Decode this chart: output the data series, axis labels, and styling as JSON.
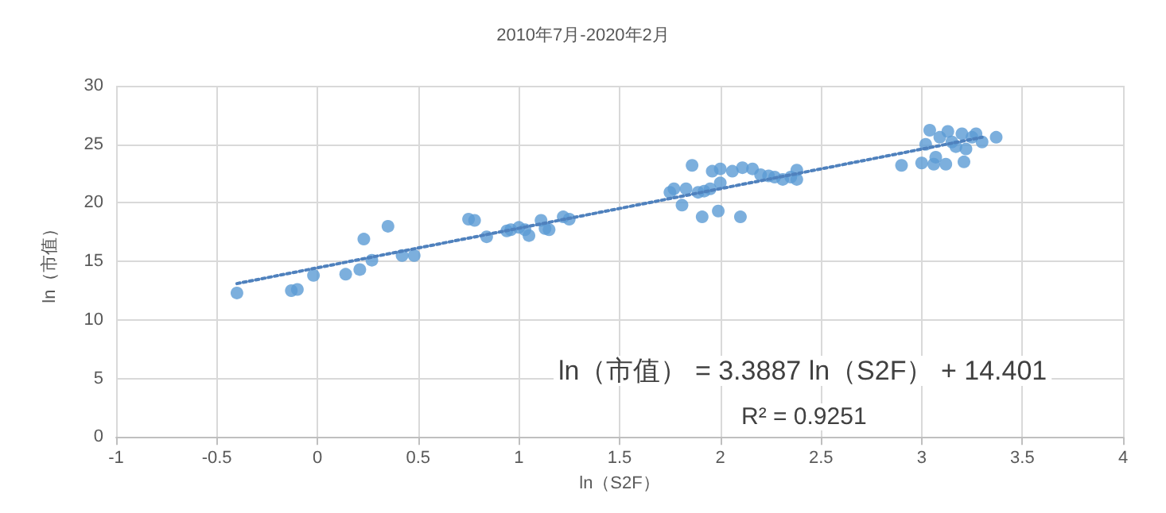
{
  "chart_data": {
    "type": "scatter",
    "subtitle": "2010年7月-2020年2月",
    "xlabel": "ln（S2F）",
    "ylabel": "ln（市值）",
    "annotations": [
      "ln（市值） = 3.3887 ln（S2F） + 14.401",
      "R² = 0.9251"
    ],
    "xlim": [
      -1,
      4
    ],
    "xticks": [
      -1,
      -0.5,
      0,
      0.5,
      1,
      1.5,
      2,
      2.5,
      3,
      3.5,
      4
    ],
    "ylim": [
      0,
      30
    ],
    "yticks": [
      0,
      5,
      10,
      15,
      20,
      25,
      30
    ],
    "grid": true,
    "marker": "circle",
    "series": [
      {
        "color": "#5b9bd5",
        "x": [
          -0.4,
          -0.13,
          -0.1,
          -0.02,
          0.14,
          0.21,
          0.23,
          0.27,
          0.35,
          0.42,
          0.48,
          0.75,
          0.78,
          0.84,
          0.94,
          0.96,
          1.0,
          1.03,
          1.05,
          1.11,
          1.13,
          1.15,
          1.22,
          1.25,
          1.75,
          1.77,
          1.81,
          1.83,
          1.86,
          1.89,
          1.91,
          1.92,
          1.95,
          1.96,
          1.99,
          2.0,
          2.0,
          2.06,
          2.1,
          2.11,
          2.16,
          2.2,
          2.24,
          2.27,
          2.31,
          2.35,
          2.38,
          2.38,
          2.9,
          3.0,
          3.02,
          3.04,
          3.06,
          3.07,
          3.09,
          3.12,
          3.13,
          3.15,
          3.17,
          3.2,
          3.21,
          3.22,
          3.25,
          3.27,
          3.3,
          3.37
        ],
        "values": [
          12.3,
          12.5,
          12.6,
          13.8,
          13.9,
          14.3,
          16.9,
          15.1,
          18.0,
          15.5,
          15.5,
          18.6,
          18.5,
          17.1,
          17.6,
          17.7,
          17.9,
          17.7,
          17.2,
          18.5,
          17.8,
          17.7,
          18.8,
          18.6,
          20.9,
          21.2,
          19.8,
          21.2,
          23.2,
          20.9,
          18.8,
          21.0,
          21.2,
          22.7,
          19.3,
          22.9,
          21.7,
          22.7,
          18.8,
          23.0,
          22.9,
          22.4,
          22.3,
          22.2,
          22.0,
          22.2,
          22.8,
          22.0,
          23.2,
          23.4,
          25.0,
          26.2,
          23.3,
          23.9,
          25.6,
          23.3,
          26.1,
          25.2,
          24.8,
          25.9,
          23.5,
          24.6,
          25.6,
          25.9,
          25.2,
          25.6
        ]
      },
      {
        "type": "line",
        "color": "#4f81bd",
        "line_style": "dotted",
        "marker": "none",
        "x": [
          -0.4,
          3.3
        ],
        "values": [
          13.1,
          25.6
        ]
      }
    ]
  }
}
